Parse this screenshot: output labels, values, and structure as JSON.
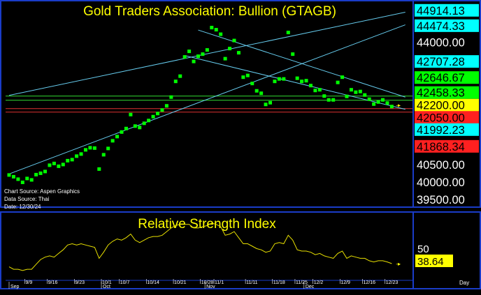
{
  "colors": {
    "background": "#000000",
    "frame": "#1a3cc8",
    "title": "#ffff00",
    "price_point": "#00ff00",
    "trend_line": "#66ccee",
    "support_line_green": "#33dd33",
    "support_line_red": "#dd3333",
    "rsi_line": "#e8e000",
    "label_cyan": "#00ffff",
    "label_green": "#00ff00",
    "label_yellow": "#ffff00",
    "label_red": "#ff2020",
    "axis_text": "#ffffff"
  },
  "chart_data": [
    {
      "type": "scatter",
      "title": "Gold Traders Association: Bullion (GTAGB)",
      "source_notes": [
        "Chart Source: Aspen Graphics",
        "Data Source: Thai",
        "Date: 12/30/24"
      ],
      "ylim": [
        39300,
        45050
      ],
      "points": [
        {
          "d": 1,
          "y": 40200
        },
        {
          "d": 2,
          "y": 40150
        },
        {
          "d": 3,
          "y": 40080
        },
        {
          "d": 4,
          "y": 39990
        },
        {
          "d": 5,
          "y": 40100
        },
        {
          "d": 6,
          "y": 40060
        },
        {
          "d": 7,
          "y": 40210
        },
        {
          "d": 8,
          "y": 40250
        },
        {
          "d": 9,
          "y": 40300
        },
        {
          "d": 10,
          "y": 40480
        },
        {
          "d": 11,
          "y": 40530
        },
        {
          "d": 12,
          "y": 40450
        },
        {
          "d": 13,
          "y": 40500
        },
        {
          "d": 14,
          "y": 40610
        },
        {
          "d": 15,
          "y": 40640
        },
        {
          "d": 16,
          "y": 40740
        },
        {
          "d": 17,
          "y": 40800
        },
        {
          "d": 18,
          "y": 40920
        },
        {
          "d": 19,
          "y": 40980
        },
        {
          "d": 20,
          "y": 40970
        },
        {
          "d": 21,
          "y": 40370
        },
        {
          "d": 22,
          "y": 40780
        },
        {
          "d": 23,
          "y": 40960
        },
        {
          "d": 24,
          "y": 41180
        },
        {
          "d": 25,
          "y": 41300
        },
        {
          "d": 26,
          "y": 41430
        },
        {
          "d": 27,
          "y": 41530
        },
        {
          "d": 28,
          "y": 41930
        },
        {
          "d": 29,
          "y": 41600
        },
        {
          "d": 30,
          "y": 41560
        },
        {
          "d": 31,
          "y": 41680
        },
        {
          "d": 32,
          "y": 41760
        },
        {
          "d": 33,
          "y": 41870
        },
        {
          "d": 34,
          "y": 41960
        },
        {
          "d": 35,
          "y": 42060
        },
        {
          "d": 36,
          "y": 42180
        },
        {
          "d": 37,
          "y": 42430
        },
        {
          "d": 38,
          "y": 42880
        },
        {
          "d": 39,
          "y": 43030
        },
        {
          "d": 40,
          "y": 43580
        },
        {
          "d": 41,
          "y": 43740
        },
        {
          "d": 42,
          "y": 43450
        },
        {
          "d": 43,
          "y": 43600
        },
        {
          "d": 44,
          "y": 43660
        },
        {
          "d": 45,
          "y": 43780
        },
        {
          "d": 46,
          "y": 44420
        },
        {
          "d": 47,
          "y": 44360
        },
        {
          "d": 48,
          "y": 44230
        },
        {
          "d": 49,
          "y": 43530
        },
        {
          "d": 50,
          "y": 43820
        },
        {
          "d": 51,
          "y": 44050
        },
        {
          "d": 52,
          "y": 43700
        },
        {
          "d": 53,
          "y": 43000
        },
        {
          "d": 54,
          "y": 43050
        },
        {
          "d": 55,
          "y": 42820
        },
        {
          "d": 56,
          "y": 42610
        },
        {
          "d": 57,
          "y": 42540
        },
        {
          "d": 58,
          "y": 42220
        },
        {
          "d": 59,
          "y": 42270
        },
        {
          "d": 60,
          "y": 42880
        },
        {
          "d": 61,
          "y": 42950
        },
        {
          "d": 62,
          "y": 42950
        },
        {
          "d": 63,
          "y": 44280
        },
        {
          "d": 64,
          "y": 43660
        },
        {
          "d": 65,
          "y": 42970
        },
        {
          "d": 66,
          "y": 42880
        },
        {
          "d": 67,
          "y": 42900
        },
        {
          "d": 68,
          "y": 42760
        },
        {
          "d": 69,
          "y": 42620
        },
        {
          "d": 70,
          "y": 42640
        },
        {
          "d": 71,
          "y": 42460
        },
        {
          "d": 72,
          "y": 42350
        },
        {
          "d": 73,
          "y": 42350
        },
        {
          "d": 74,
          "y": 42850
        },
        {
          "d": 75,
          "y": 43000
        },
        {
          "d": 76,
          "y": 42450
        },
        {
          "d": 77,
          "y": 42640
        },
        {
          "d": 78,
          "y": 42570
        },
        {
          "d": 79,
          "y": 42590
        },
        {
          "d": 80,
          "y": 42490
        },
        {
          "d": 81,
          "y": 42370
        },
        {
          "d": 82,
          "y": 42230
        },
        {
          "d": 83,
          "y": 42290
        },
        {
          "d": 84,
          "y": 42350
        },
        {
          "d": 85,
          "y": 42260
        },
        {
          "d": 86,
          "y": 42160
        }
      ],
      "last_value_y": 42200,
      "trend_lines": [
        {
          "d1": 1,
          "y1": 42480,
          "d2": 89,
          "y2": 44860
        },
        {
          "d1": 1,
          "y1": 40230,
          "d2": 89,
          "y2": 44500
        },
        {
          "d1": 40,
          "y1": 43620,
          "d2": 89,
          "y2": 42080
        },
        {
          "d1": 43,
          "y1": 44350,
          "d2": 89,
          "y2": 42430
        }
      ],
      "horizontal_lines": [
        {
          "y": 42460,
          "color": "green"
        },
        {
          "y": 42340,
          "color": "green"
        },
        {
          "y": 42100,
          "color": "red"
        },
        {
          "y": 42000,
          "color": "red"
        }
      ],
      "price_labels": [
        {
          "text": "44914.13",
          "y": 44914.13,
          "bg": "cyan"
        },
        {
          "text": "44474.33",
          "y": 44474.33,
          "bg": "cyan"
        },
        {
          "text": "44000.00",
          "y": 44000,
          "bg": "none"
        },
        {
          "text": "42707.28",
          "y": 43450,
          "bg": "cyan"
        },
        {
          "text": "42646.67",
          "y": 42990,
          "bg": "green"
        },
        {
          "text": "42458.33",
          "y": 42560,
          "bg": "green"
        },
        {
          "text": "42200.00",
          "y": 42200,
          "bg": "yellow"
        },
        {
          "text": "42050.00",
          "y": 41850,
          "bg": "red"
        },
        {
          "text": "41992.23",
          "y": 41500,
          "bg": "cyan"
        },
        {
          "text": "41868.34",
          "y": 41020,
          "bg": "red"
        },
        {
          "text": "40500.00",
          "y": 40500,
          "bg": "none"
        },
        {
          "text": "40000.00",
          "y": 40000,
          "bg": "none"
        },
        {
          "text": "39500.00",
          "y": 39500,
          "bg": "none"
        }
      ]
    },
    {
      "type": "line",
      "title": "Relative Strength Index",
      "ylim": [
        26,
        80
      ],
      "ytick": "50",
      "last_value": "38.64",
      "x_ticks": [
        "9/9",
        "9/16",
        "9/23",
        "10/1",
        "10/7",
        "10/14",
        "10/21",
        "10/28",
        "11/1",
        "11/11",
        "11/18",
        "11/25",
        "12/2",
        "12/9",
        "12/16",
        "12/23"
      ],
      "months": [
        "Sep",
        "Oct",
        "Nov",
        "Dec"
      ],
      "period_label": "Day",
      "values": [
        {
          "d": 1,
          "y": 36
        },
        {
          "d": 2,
          "y": 34
        },
        {
          "d": 3,
          "y": 34
        },
        {
          "d": 4,
          "y": 33
        },
        {
          "d": 5,
          "y": 34
        },
        {
          "d": 6,
          "y": 34
        },
        {
          "d": 7,
          "y": 38
        },
        {
          "d": 8,
          "y": 42
        },
        {
          "d": 9,
          "y": 44
        },
        {
          "d": 10,
          "y": 45
        },
        {
          "d": 11,
          "y": 44
        },
        {
          "d": 12,
          "y": 47
        },
        {
          "d": 13,
          "y": 50
        },
        {
          "d": 14,
          "y": 54
        },
        {
          "d": 15,
          "y": 55
        },
        {
          "d": 16,
          "y": 54
        },
        {
          "d": 17,
          "y": 55
        },
        {
          "d": 18,
          "y": 54
        },
        {
          "d": 19,
          "y": 53
        },
        {
          "d": 20,
          "y": 52
        },
        {
          "d": 21,
          "y": 43
        },
        {
          "d": 22,
          "y": 48
        },
        {
          "d": 23,
          "y": 54
        },
        {
          "d": 24,
          "y": 57
        },
        {
          "d": 25,
          "y": 59
        },
        {
          "d": 26,
          "y": 58
        },
        {
          "d": 27,
          "y": 60
        },
        {
          "d": 28,
          "y": 63
        },
        {
          "d": 29,
          "y": 58
        },
        {
          "d": 30,
          "y": 56
        },
        {
          "d": 31,
          "y": 58
        },
        {
          "d": 32,
          "y": 60
        },
        {
          "d": 33,
          "y": 61
        },
        {
          "d": 34,
          "y": 61
        },
        {
          "d": 35,
          "y": 62
        },
        {
          "d": 36,
          "y": 65
        },
        {
          "d": 37,
          "y": 68
        },
        {
          "d": 38,
          "y": 70
        },
        {
          "d": 39,
          "y": 71
        },
        {
          "d": 40,
          "y": 71
        },
        {
          "d": 41,
          "y": 71
        },
        {
          "d": 42,
          "y": 68
        },
        {
          "d": 43,
          "y": 68
        },
        {
          "d": 44,
          "y": 69
        },
        {
          "d": 45,
          "y": 70
        },
        {
          "d": 46,
          "y": 72
        },
        {
          "d": 47,
          "y": 71
        },
        {
          "d": 48,
          "y": 69
        },
        {
          "d": 49,
          "y": 62
        },
        {
          "d": 50,
          "y": 63
        },
        {
          "d": 51,
          "y": 65
        },
        {
          "d": 52,
          "y": 60
        },
        {
          "d": 53,
          "y": 55
        },
        {
          "d": 54,
          "y": 55
        },
        {
          "d": 55,
          "y": 53
        },
        {
          "d": 56,
          "y": 51
        },
        {
          "d": 57,
          "y": 50
        },
        {
          "d": 58,
          "y": 48
        },
        {
          "d": 59,
          "y": 49
        },
        {
          "d": 60,
          "y": 55
        },
        {
          "d": 61,
          "y": 56
        },
        {
          "d": 62,
          "y": 55
        },
        {
          "d": 63,
          "y": 62
        },
        {
          "d": 64,
          "y": 58
        },
        {
          "d": 65,
          "y": 50
        },
        {
          "d": 66,
          "y": 49
        },
        {
          "d": 67,
          "y": 49
        },
        {
          "d": 68,
          "y": 48
        },
        {
          "d": 69,
          "y": 46
        },
        {
          "d": 70,
          "y": 47
        },
        {
          "d": 71,
          "y": 45
        },
        {
          "d": 72,
          "y": 44
        },
        {
          "d": 73,
          "y": 43
        },
        {
          "d": 74,
          "y": 47
        },
        {
          "d": 75,
          "y": 49
        },
        {
          "d": 76,
          "y": 43
        },
        {
          "d": 77,
          "y": 45
        },
        {
          "d": 78,
          "y": 44
        },
        {
          "d": 79,
          "y": 43
        },
        {
          "d": 80,
          "y": 43
        },
        {
          "d": 81,
          "y": 41
        },
        {
          "d": 82,
          "y": 40
        },
        {
          "d": 83,
          "y": 41
        },
        {
          "d": 84,
          "y": 41
        },
        {
          "d": 85,
          "y": 40
        },
        {
          "d": 86,
          "y": 38.64
        }
      ]
    }
  ]
}
